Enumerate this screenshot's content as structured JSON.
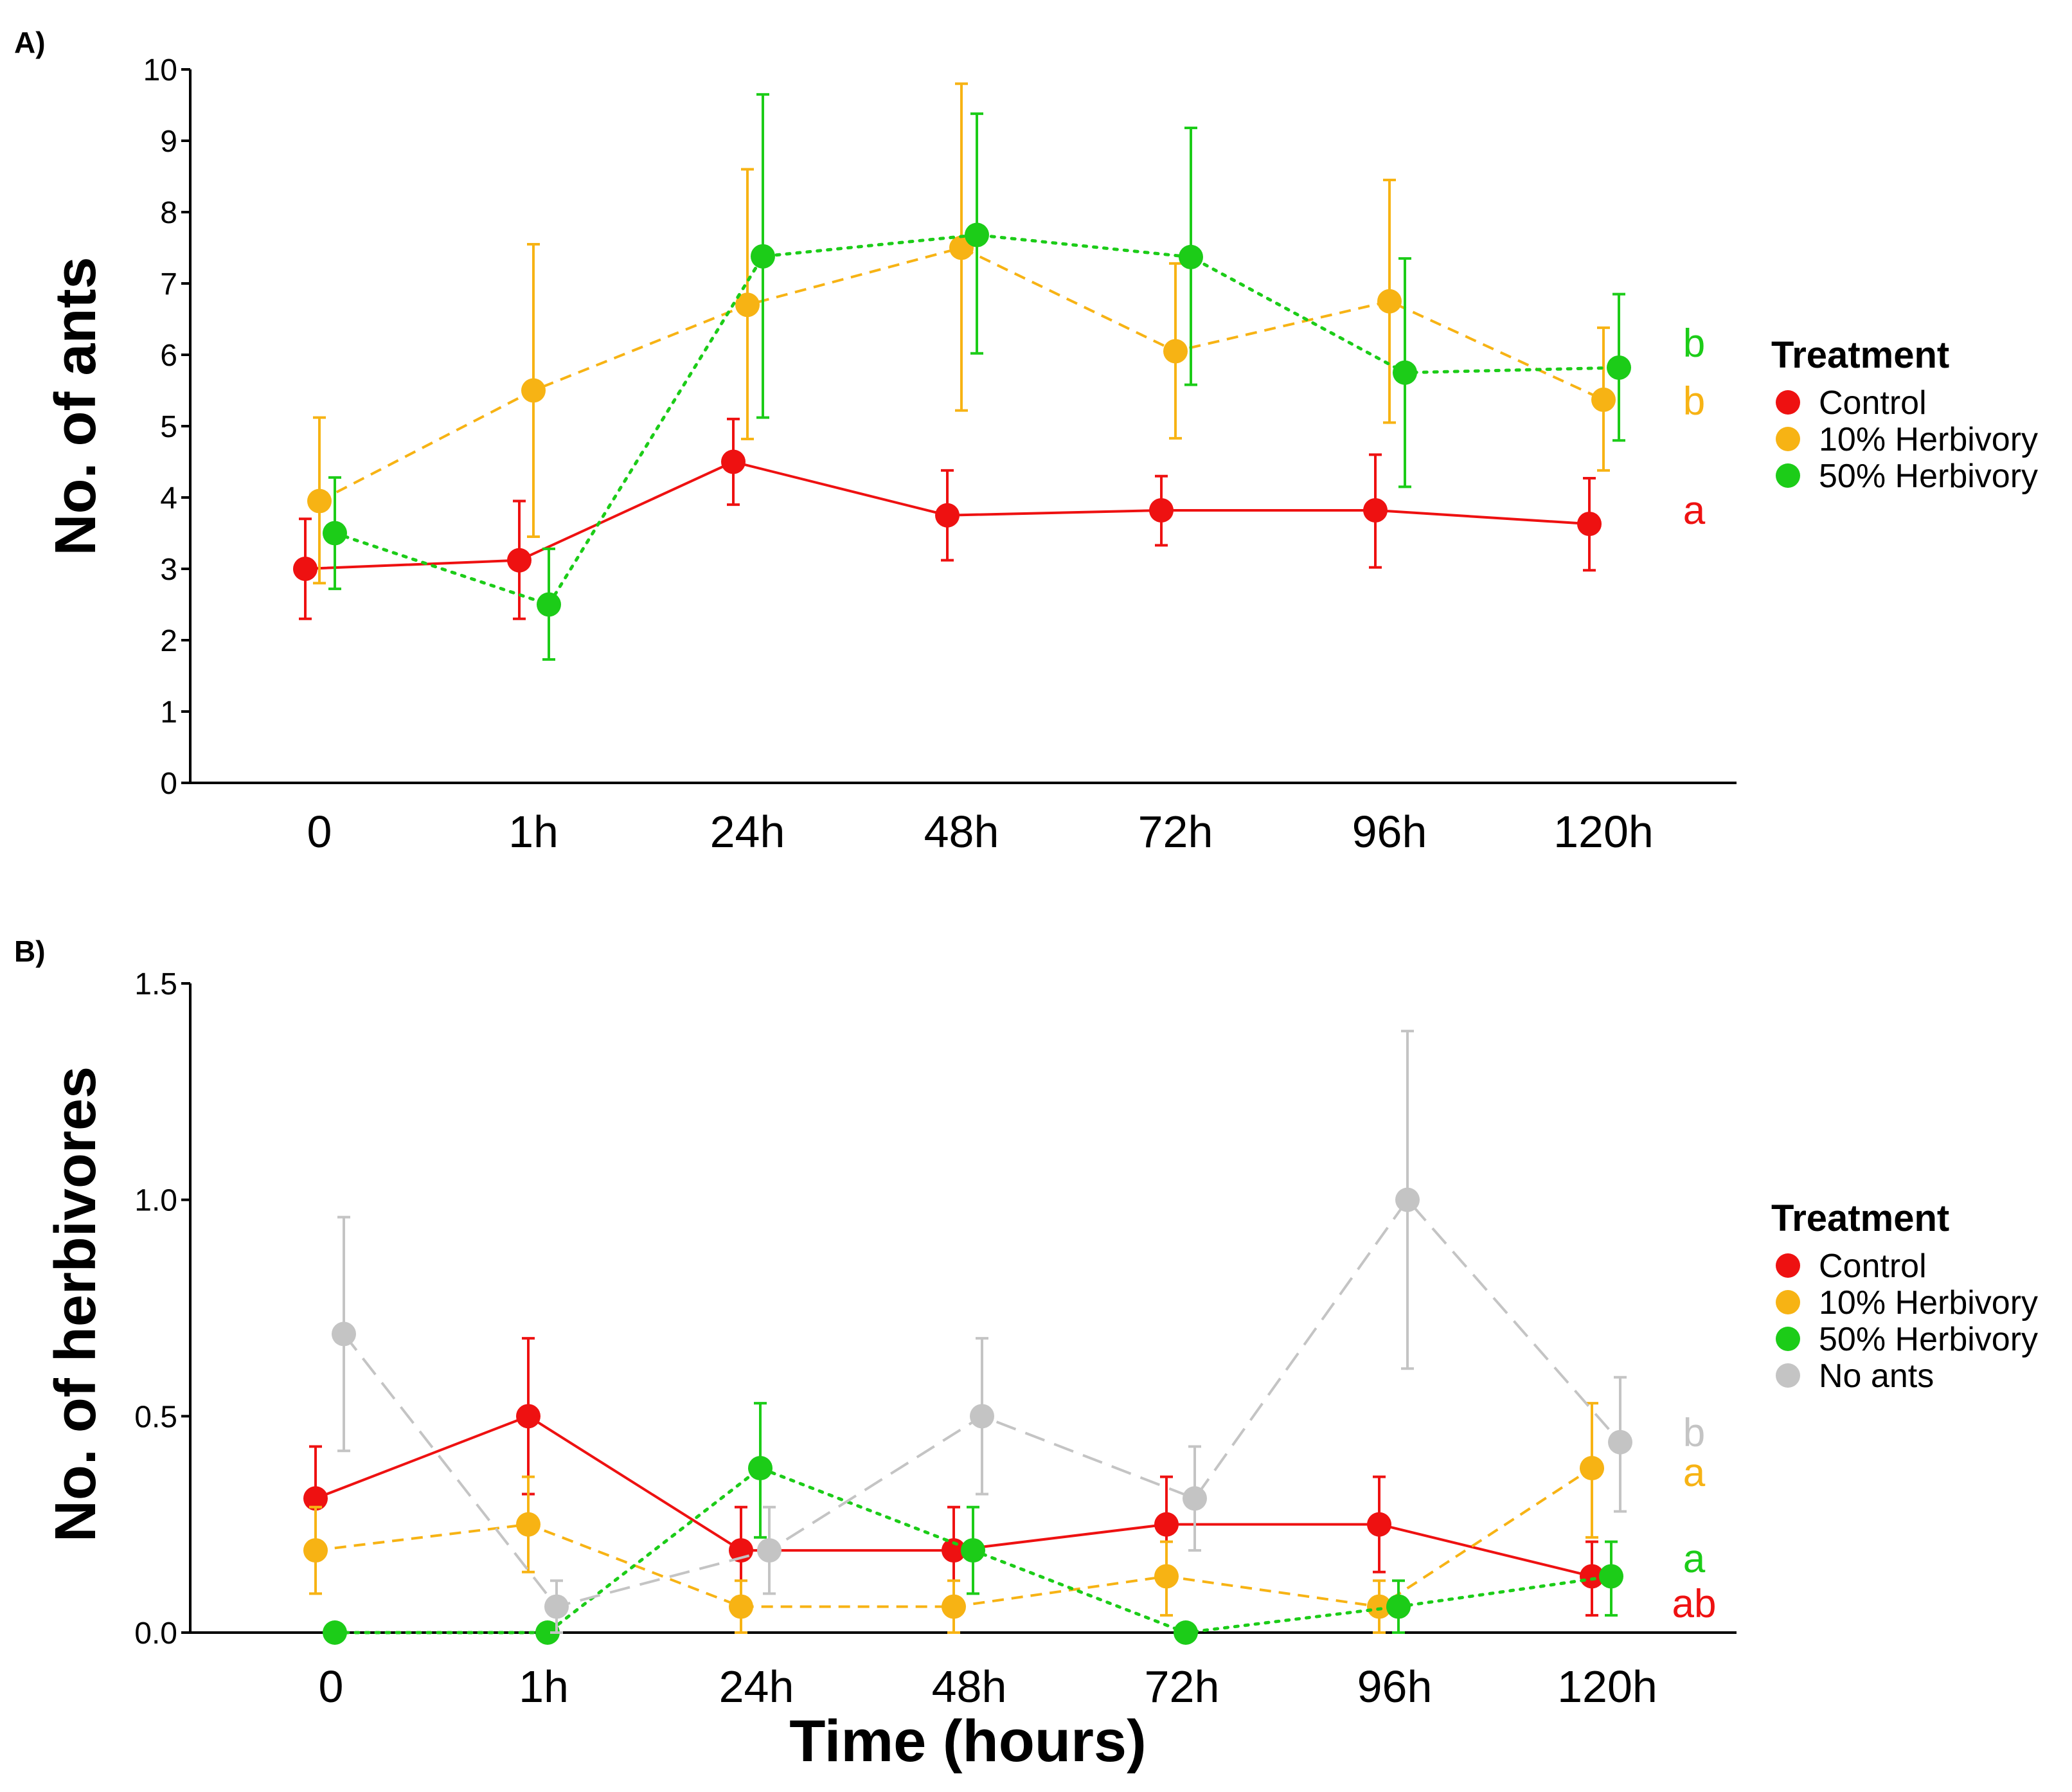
{
  "chart_data": [
    {
      "type": "line",
      "panel_label": "A)",
      "title": "",
      "xlabel": "",
      "ylabel": "No. of ants",
      "categories": [
        "0",
        "1h",
        "24h",
        "48h",
        "72h",
        "96h",
        "120h"
      ],
      "ylim": [
        0,
        10
      ],
      "yticks": [
        "0",
        "1",
        "2",
        "3",
        "4",
        "5",
        "6",
        "7",
        "8",
        "9",
        "10"
      ],
      "grid": false,
      "legend": {
        "title": "Treatment",
        "placement": "right"
      },
      "series": [
        {
          "name": "Control",
          "color": "#ee1111",
          "line_style": "solid",
          "values": [
            3.0,
            3.12,
            4.5,
            3.75,
            3.82,
            3.82,
            3.63
          ],
          "error_low": [
            2.3,
            2.3,
            3.9,
            3.12,
            3.33,
            3.02,
            2.98
          ],
          "error_high": [
            3.7,
            3.95,
            5.1,
            4.38,
            4.3,
            4.6,
            4.27
          ],
          "letter": "a"
        },
        {
          "name": "10% Herbivory",
          "color": "#f7b314",
          "line_style": "dashed",
          "values": [
            3.95,
            5.5,
            6.7,
            7.5,
            6.05,
            6.75,
            5.37
          ],
          "error_low": [
            2.8,
            3.45,
            4.82,
            5.22,
            4.83,
            5.05,
            4.38
          ],
          "error_high": [
            5.12,
            7.55,
            8.6,
            9.8,
            7.28,
            8.45,
            6.38
          ],
          "letter": "b"
        },
        {
          "name": "50% Herbivory",
          "color": "#1ccc18",
          "line_style": "dotted",
          "values": [
            3.5,
            2.5,
            7.38,
            7.68,
            7.37,
            5.75,
            5.82
          ],
          "error_low": [
            2.72,
            1.73,
            5.12,
            6.02,
            5.58,
            4.15,
            4.8
          ],
          "error_high": [
            4.28,
            3.28,
            9.65,
            9.38,
            9.18,
            7.35,
            6.85
          ],
          "letter": "b"
        }
      ]
    },
    {
      "type": "line",
      "panel_label": "B)",
      "title": "",
      "xlabel": "Time (hours)",
      "ylabel": "No. of herbivores",
      "categories": [
        "0",
        "1h",
        "24h",
        "48h",
        "72h",
        "96h",
        "120h"
      ],
      "ylim": [
        0,
        1.5
      ],
      "yticks": [
        "0.0",
        "0.5",
        "1.0",
        "1.5"
      ],
      "grid": false,
      "legend": {
        "title": "Treatment",
        "placement": "right"
      },
      "series": [
        {
          "name": "Control",
          "color": "#ee1111",
          "line_style": "solid",
          "values": [
            0.31,
            0.5,
            0.19,
            0.19,
            0.25,
            0.25,
            0.13
          ],
          "error_low": [
            0.19,
            0.32,
            0.08,
            0.08,
            0.13,
            0.14,
            0.04
          ],
          "error_high": [
            0.43,
            0.68,
            0.29,
            0.29,
            0.36,
            0.36,
            0.21
          ],
          "letter": "ab"
        },
        {
          "name": "10% Herbivory",
          "color": "#f7b314",
          "line_style": "dashed",
          "values": [
            0.19,
            0.25,
            0.06,
            0.06,
            0.13,
            0.06,
            0.38
          ],
          "error_low": [
            0.09,
            0.14,
            0.0,
            0.0,
            0.04,
            0.0,
            0.22
          ],
          "error_high": [
            0.29,
            0.36,
            0.12,
            0.12,
            0.21,
            0.12,
            0.53
          ],
          "letter": "a"
        },
        {
          "name": "50% Herbivory",
          "color": "#1ccc18",
          "line_style": "dotted",
          "values": [
            0.0,
            0.0,
            0.38,
            0.19,
            0.0,
            0.06,
            0.13
          ],
          "error_low": [
            0.0,
            0.0,
            0.22,
            0.09,
            0.0,
            0.0,
            0.04
          ],
          "error_high": [
            0.0,
            0.0,
            0.53,
            0.29,
            0.0,
            0.12,
            0.21
          ],
          "letter": "a"
        },
        {
          "name": "No ants",
          "color": "#c4c4c4",
          "line_style": "longdash",
          "values": [
            0.69,
            0.06,
            0.19,
            0.5,
            0.31,
            1.0,
            0.44
          ],
          "error_low": [
            0.42,
            0.0,
            0.09,
            0.32,
            0.19,
            0.61,
            0.28
          ],
          "error_high": [
            0.96,
            0.12,
            0.29,
            0.68,
            0.43,
            1.39,
            0.59
          ],
          "letter": "b"
        }
      ]
    }
  ]
}
